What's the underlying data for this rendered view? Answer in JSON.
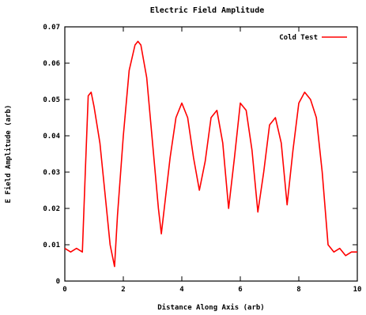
{
  "chart_data": {
    "type": "line",
    "title": "Electric Field Amplitude",
    "xlabel": "Distance Along Axis (arb)",
    "ylabel": "E Field Amplitude (arb)",
    "xlim": [
      0,
      10
    ],
    "ylim": [
      0,
      0.07
    ],
    "x_ticks": [
      0,
      2,
      4,
      6,
      8,
      10
    ],
    "x_tick_labels": [
      "0",
      "2",
      "4",
      "6",
      "8",
      "10"
    ],
    "y_ticks": [
      0,
      0.01,
      0.02,
      0.03,
      0.04,
      0.05,
      0.06,
      0.07
    ],
    "y_tick_labels": [
      "0",
      "0.01",
      "0.02",
      "0.03",
      "0.04",
      "0.05",
      "0.06",
      "0.07"
    ],
    "legend_position": "top-right",
    "grid": false,
    "series_color": "#ff0000",
    "series": [
      {
        "name": "Cold Test",
        "x": [
          0.0,
          0.2,
          0.4,
          0.6,
          0.7,
          0.8,
          0.9,
          1.0,
          1.2,
          1.4,
          1.55,
          1.7,
          1.8,
          2.0,
          2.2,
          2.4,
          2.5,
          2.6,
          2.8,
          3.0,
          3.2,
          3.3,
          3.4,
          3.6,
          3.8,
          4.0,
          4.2,
          4.4,
          4.6,
          4.8,
          5.0,
          5.2,
          5.4,
          5.6,
          5.8,
          6.0,
          6.2,
          6.4,
          6.6,
          6.8,
          7.0,
          7.2,
          7.4,
          7.6,
          7.8,
          8.0,
          8.2,
          8.4,
          8.6,
          8.8,
          9.0,
          9.2,
          9.4,
          9.6,
          9.8,
          10.0
        ],
        "y": [
          0.009,
          0.008,
          0.009,
          0.008,
          0.03,
          0.051,
          0.052,
          0.048,
          0.038,
          0.022,
          0.01,
          0.004,
          0.018,
          0.04,
          0.058,
          0.065,
          0.066,
          0.065,
          0.056,
          0.038,
          0.02,
          0.013,
          0.02,
          0.034,
          0.045,
          0.049,
          0.045,
          0.034,
          0.025,
          0.033,
          0.045,
          0.047,
          0.038,
          0.02,
          0.034,
          0.049,
          0.047,
          0.036,
          0.019,
          0.03,
          0.043,
          0.045,
          0.038,
          0.021,
          0.036,
          0.049,
          0.052,
          0.05,
          0.045,
          0.03,
          0.01,
          0.008,
          0.009,
          0.007,
          0.008,
          0.008
        ]
      }
    ]
  }
}
